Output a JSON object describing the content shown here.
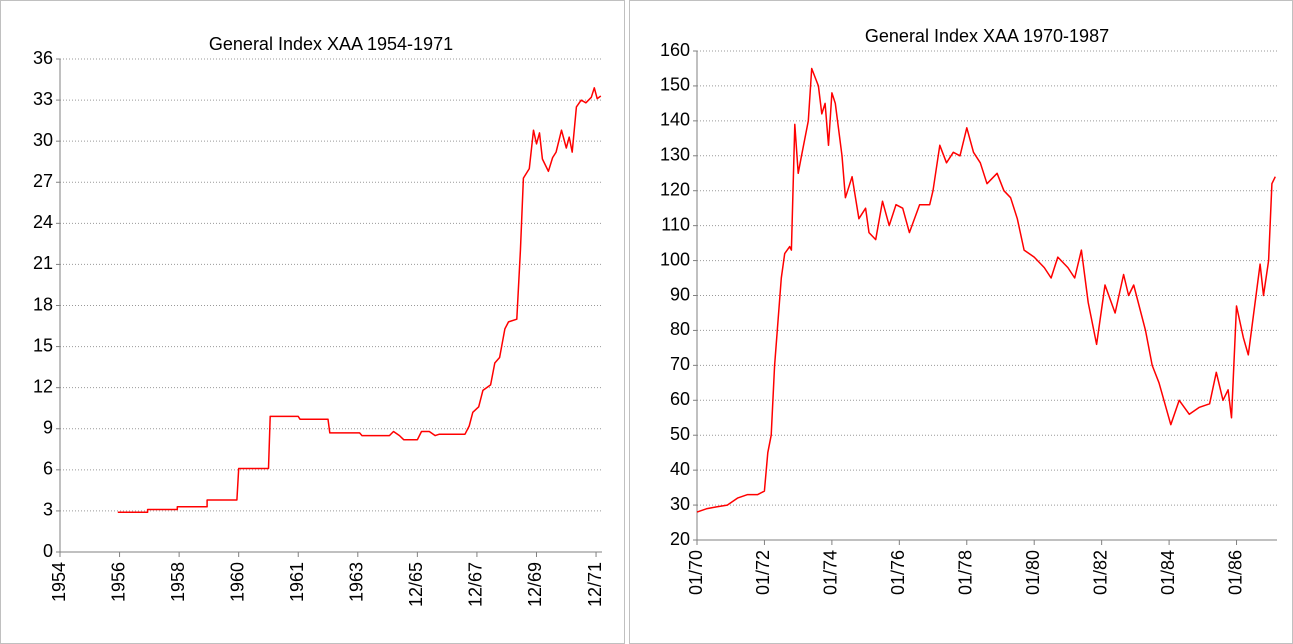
{
  "chart_data": [
    {
      "type": "line",
      "title": "General Index XAA 1954-1971",
      "x": [
        0.97,
        1.47,
        1.47,
        1.97,
        1.97,
        2.47,
        2.47,
        2.97,
        3.0,
        3.5,
        3.53,
        4.0,
        4.03,
        4.5,
        4.53,
        5.03,
        5.07,
        5.53,
        5.6,
        5.7,
        5.77,
        6.0,
        6.07,
        6.2,
        6.3,
        6.37,
        6.8,
        6.87,
        6.93,
        7.03,
        7.1,
        7.23,
        7.3,
        7.38,
        7.47,
        7.53,
        7.67,
        7.73,
        7.78,
        7.88,
        7.95,
        8.0,
        8.05,
        8.1,
        8.2,
        8.27,
        8.33,
        8.42,
        8.5,
        8.55,
        8.6,
        8.67,
        8.75,
        8.83,
        8.92,
        8.97,
        9.02,
        9.08
      ],
      "series": [
        {
          "name": "General Index XAA",
          "color": "#ff0000",
          "values": [
            2.9,
            2.9,
            3.1,
            3.1,
            3.3,
            3.3,
            3.8,
            3.8,
            6.1,
            6.1,
            9.9,
            9.9,
            9.7,
            9.7,
            8.7,
            8.7,
            8.5,
            8.5,
            8.8,
            8.5,
            8.2,
            8.2,
            8.8,
            8.8,
            8.5,
            8.6,
            8.6,
            9.2,
            10.2,
            10.6,
            11.8,
            12.2,
            13.8,
            14.2,
            16.3,
            16.8,
            17,
            22,
            27.3,
            28,
            30.8,
            29.8,
            30.6,
            28.7,
            27.8,
            28.8,
            29.2,
            30.8,
            29.5,
            30.3,
            29.2,
            32.5,
            33,
            32.8,
            33.2,
            33.9,
            33.1,
            33.3
          ]
        }
      ],
      "xlim": [
        0,
        9.1
      ],
      "xticks": [
        {
          "value": 0,
          "label": "1954"
        },
        {
          "value": 1,
          "label": "1956"
        },
        {
          "value": 2,
          "label": "1958"
        },
        {
          "value": 3,
          "label": "1960"
        },
        {
          "value": 4,
          "label": "1961"
        },
        {
          "value": 5,
          "label": "1963"
        },
        {
          "value": 6,
          "label": "12/65"
        },
        {
          "value": 7,
          "label": "12/67"
        },
        {
          "value": 8,
          "label": "12/69"
        },
        {
          "value": 9,
          "label": "12/71"
        }
      ],
      "ylim": [
        0,
        36
      ],
      "yticks": [
        0,
        3,
        6,
        9,
        12,
        15,
        18,
        21,
        24,
        27,
        30,
        33,
        36
      ],
      "grid": true
    },
    {
      "type": "line",
      "title": "General Index XAA 1970-1987",
      "x": [
        0,
        0.3,
        0.6,
        0.9,
        1.2,
        1.5,
        1.8,
        2.0,
        2.1,
        2.2,
        2.3,
        2.5,
        2.6,
        2.75,
        2.8,
        2.9,
        3.0,
        3.1,
        3.3,
        3.4,
        3.6,
        3.7,
        3.8,
        3.9,
        4.0,
        4.1,
        4.3,
        4.4,
        4.6,
        4.8,
        5.0,
        5.1,
        5.3,
        5.5,
        5.7,
        5.9,
        6.1,
        6.3,
        6.6,
        6.9,
        7.0,
        7.2,
        7.4,
        7.6,
        7.8,
        8.0,
        8.2,
        8.4,
        8.6,
        8.9,
        9.1,
        9.3,
        9.5,
        9.7,
        10.0,
        10.3,
        10.5,
        10.7,
        11.0,
        11.2,
        11.4,
        11.6,
        11.85,
        12.1,
        12.4,
        12.65,
        12.8,
        12.95,
        13.3,
        13.5,
        13.7,
        14.05,
        14.3,
        14.6,
        14.9,
        15.2,
        15.4,
        15.6,
        15.75,
        15.85,
        16.0,
        16.2,
        16.35,
        16.55,
        16.7,
        16.8,
        16.95,
        17.05,
        17.15
      ],
      "series": [
        {
          "name": "General Index XAA",
          "color": "#ff0000",
          "values": [
            28,
            29,
            29.5,
            30,
            32,
            33,
            33,
            34,
            45,
            50,
            70,
            95,
            102,
            104,
            103,
            139,
            125,
            130,
            140,
            155,
            150,
            142,
            145,
            133,
            148,
            145,
            130,
            118,
            124,
            112,
            115,
            108,
            106,
            117,
            110,
            116,
            115,
            108,
            116,
            116,
            120,
            133,
            128,
            131,
            130,
            138,
            131,
            128,
            122,
            125,
            120,
            118,
            112,
            103,
            101,
            98,
            95,
            101,
            98,
            95,
            103,
            88,
            76,
            93,
            85,
            96,
            90,
            93,
            80,
            70,
            65,
            53,
            60,
            56,
            58,
            59,
            68,
            60,
            63,
            55,
            87,
            78,
            73,
            88,
            99,
            90,
            100,
            122,
            124
          ]
        }
      ],
      "xlim": [
        0,
        17.2
      ],
      "xticks": [
        {
          "value": 0,
          "label": "01/70"
        },
        {
          "value": 2,
          "label": "01/72"
        },
        {
          "value": 4,
          "label": "01/74"
        },
        {
          "value": 6,
          "label": "01/76"
        },
        {
          "value": 8,
          "label": "01/78"
        },
        {
          "value": 10,
          "label": "01/80"
        },
        {
          "value": 12,
          "label": "01/82"
        },
        {
          "value": 14,
          "label": "01/84"
        },
        {
          "value": 16,
          "label": "01/86"
        }
      ],
      "ylim": [
        20,
        160
      ],
      "yticks": [
        20,
        30,
        40,
        50,
        60,
        70,
        80,
        90,
        100,
        110,
        120,
        130,
        140,
        150,
        160
      ],
      "grid": true
    }
  ]
}
